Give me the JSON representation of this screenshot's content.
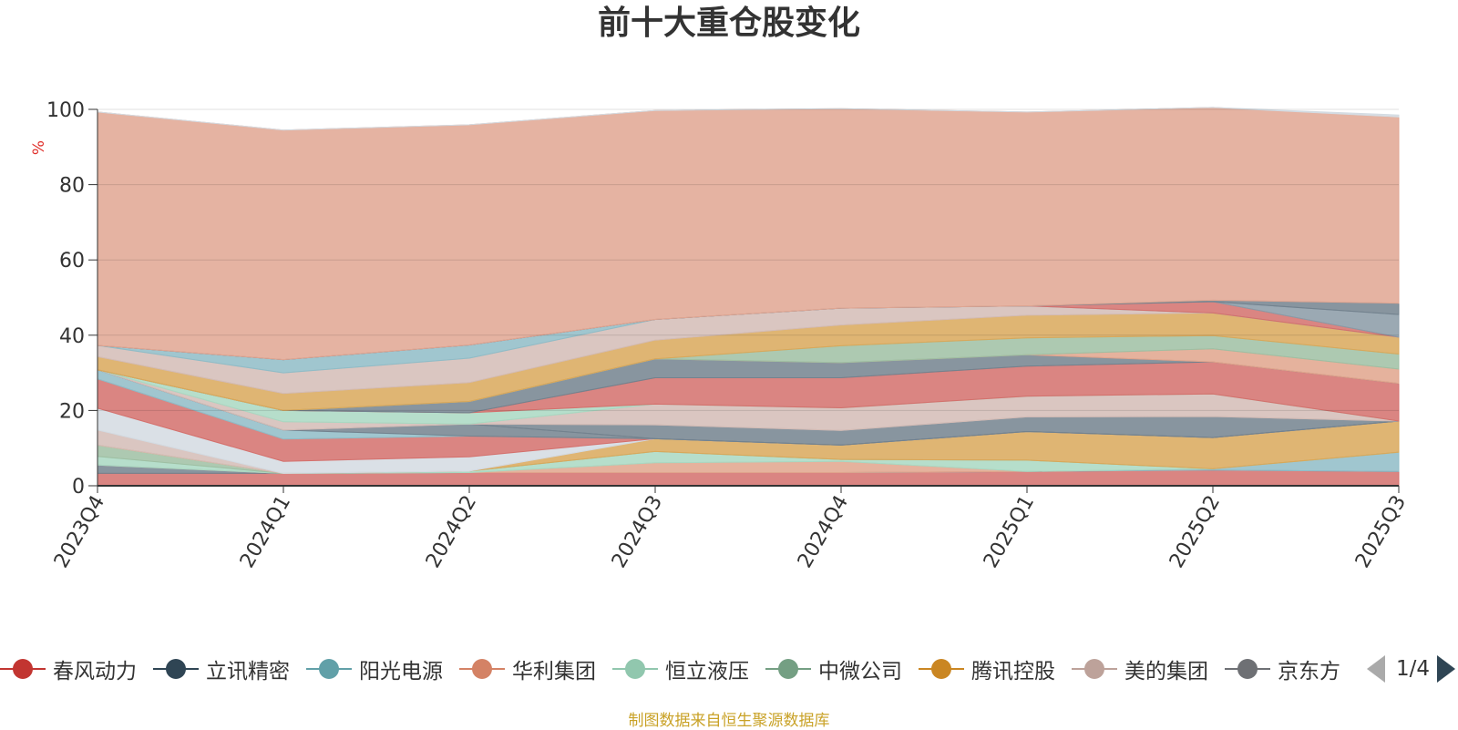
{
  "chart_data": {
    "type": "area",
    "title": "前十大重仓股变化",
    "ylabel": "%",
    "ylim": [
      0,
      100
    ],
    "yticks": [
      0,
      20,
      40,
      60,
      80,
      100
    ],
    "categories": [
      "2023Q4",
      "2024Q1",
      "2024Q2",
      "2024Q3",
      "2024Q4",
      "2025Q1",
      "2025Q2",
      "2025Q3"
    ],
    "stacked": true,
    "series": [
      {
        "name": "春风动力",
        "color": "#d4706c",
        "values": [
          3.3,
          3.3,
          3.5,
          3.5,
          3.5,
          3.8,
          4.2,
          3.8
        ]
      },
      {
        "name": "立讯精密",
        "color": "#73828e",
        "values": [
          2.2,
          0,
          0,
          0,
          0,
          0,
          0,
          0
        ]
      },
      {
        "name": "阳光电源",
        "color": "#8fbcc7",
        "values": [
          0,
          0,
          0,
          0,
          0,
          0,
          0.3,
          5.1
        ]
      },
      {
        "name": "华利集团",
        "color": "#e0a48c",
        "values": [
          0,
          0,
          0,
          2.6,
          3.0,
          0,
          0,
          0
        ]
      },
      {
        "name": "恒立液压",
        "color": "#a9d8c2",
        "values": [
          2.3,
          0,
          0.4,
          3.0,
          0.5,
          3.0,
          0,
          0
        ]
      },
      {
        "name": "中微公司",
        "color": "#9fbfa3",
        "values": [
          3.0,
          0,
          0,
          0,
          0,
          0,
          0,
          0
        ]
      },
      {
        "name": "腾讯控股",
        "color": "#d9a85a",
        "values": [
          0,
          0,
          0,
          3.4,
          3.8,
          7.6,
          8.3,
          8.3
        ]
      },
      {
        "name": "美的集团",
        "color": "#d3bcb6",
        "values": [
          4.0,
          0,
          0,
          0,
          0,
          0,
          0,
          0
        ]
      },
      {
        "name": "series-9",
        "color": "#d3dbe2",
        "values": [
          5.8,
          3.2,
          3.8,
          0,
          0,
          0,
          0,
          0
        ]
      },
      {
        "name": "series-10",
        "color": "#d4706c",
        "values": [
          7.8,
          5.9,
          5.5,
          0,
          0,
          0,
          0,
          0
        ]
      },
      {
        "name": "series-11",
        "color": "#8fbcc7",
        "values": [
          2.4,
          2.4,
          0,
          0,
          0,
          0,
          0,
          0
        ]
      },
      {
        "name": "series-12",
        "color": "#73828e",
        "values": [
          0,
          0,
          3.2,
          0,
          0,
          0,
          0,
          0
        ]
      },
      {
        "name": "series-13",
        "color": "#73828e",
        "values": [
          0,
          0,
          0,
          3.7,
          3.9,
          3.9,
          5.6,
          0
        ]
      },
      {
        "name": "series-14",
        "color": "#d3bcb6",
        "values": [
          0,
          2.2,
          0,
          0,
          0,
          0,
          0,
          0
        ]
      },
      {
        "name": "series-15",
        "color": "#d3bcb6",
        "values": [
          0,
          0,
          0,
          5.5,
          6.0,
          5.5,
          6.0,
          0
        ]
      },
      {
        "name": "series-16",
        "color": "#a9d8c2",
        "values": [
          0,
          3.0,
          3.0,
          0,
          0,
          0,
          0,
          0
        ]
      },
      {
        "name": "series-17",
        "color": "#d4706c",
        "values": [
          0,
          0,
          0,
          7.0,
          8.0,
          8.0,
          8.5,
          10.0
        ]
      },
      {
        "name": "series-18",
        "color": "#73828e",
        "values": [
          0,
          0,
          3.0,
          5.0,
          4.0,
          3.0,
          0,
          0
        ]
      },
      {
        "name": "series-19",
        "color": "#e0a48c",
        "values": [
          0,
          0,
          0,
          0,
          0,
          0,
          3.5,
          3.8
        ]
      },
      {
        "name": "series-20",
        "color": "#9fbfa3",
        "values": [
          0,
          0,
          0,
          0,
          4.5,
          4.5,
          3.5,
          4.0
        ]
      },
      {
        "name": "series-21",
        "color": "#d9a85a",
        "values": [
          3.5,
          4.5,
          5.0,
          5.0,
          5.5,
          6.0,
          6.0,
          4.5
        ]
      },
      {
        "name": "series-22",
        "color": "#d3bcb6",
        "values": [
          3.0,
          5.5,
          6.5,
          5.5,
          4.5,
          2.5,
          0,
          0
        ]
      },
      {
        "name": "series-23",
        "color": "#8fbcc7",
        "values": [
          0,
          3.5,
          3.5,
          0,
          0,
          0,
          0,
          0
        ]
      },
      {
        "name": "series-24",
        "color": "#d4706c",
        "values": [
          0,
          0,
          0,
          0,
          0,
          0,
          3.0,
          0
        ]
      },
      {
        "name": "series-25",
        "color": "#8a9aa6",
        "values": [
          0,
          0,
          0,
          0,
          0,
          0,
          0,
          6.0
        ]
      },
      {
        "name": "series-26",
        "color": "#73828e",
        "values": [
          0,
          0,
          0,
          0,
          0,
          0,
          0.4,
          3.0
        ]
      },
      {
        "name": "其他",
        "color": "#e0a692",
        "values": [
          62.0,
          61.0,
          58.5,
          55.5,
          53.0,
          51.5,
          51.2,
          49.5
        ]
      },
      {
        "name": "series-28",
        "color": "#d3dbe2",
        "values": [
          0,
          0,
          0,
          0,
          0,
          0,
          0,
          0.5
        ]
      }
    ],
    "legend": {
      "items": [
        {
          "label": "春风动力",
          "color": "#c23531"
        },
        {
          "label": "立讯精密",
          "color": "#2f4554"
        },
        {
          "label": "阳光电源",
          "color": "#61a0a8"
        },
        {
          "label": "华利集团",
          "color": "#d48265"
        },
        {
          "label": "恒立液压",
          "color": "#91c7ae"
        },
        {
          "label": "中微公司",
          "color": "#749f83"
        },
        {
          "label": "腾讯控股",
          "color": "#ca8622"
        },
        {
          "label": "美的集团",
          "color": "#bda29a"
        },
        {
          "label": "京东方A",
          "color": "#6e7074"
        }
      ],
      "page": "1/4"
    },
    "source": "制图数据来自恒生聚源数据库"
  }
}
